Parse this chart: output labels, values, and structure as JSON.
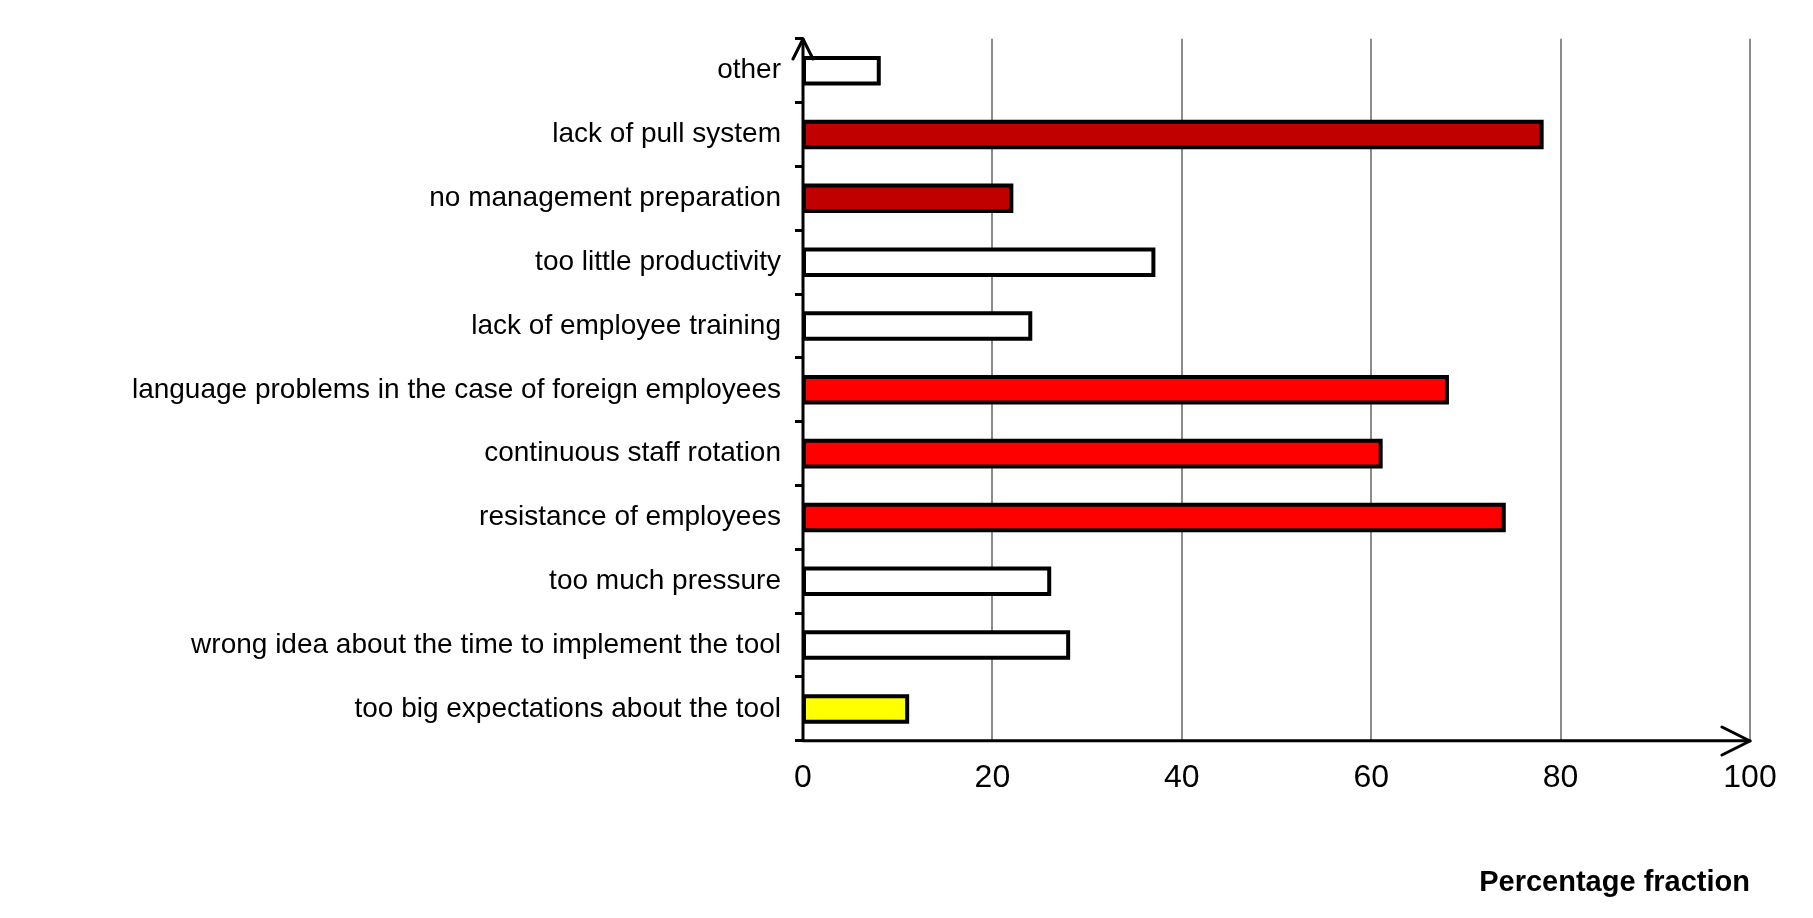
{
  "chart_data": {
    "type": "bar",
    "orientation": "horizontal",
    "xlabel": "Percentage fraction",
    "categories": [
      "other",
      "lack of pull system",
      "no management preparation",
      "too little productivity",
      "lack of employee training",
      "language problems in the case of foreign employees",
      "continuous staff rotation",
      "resistance of employees",
      "too much pressure",
      "wrong idea about the time to implement the tool",
      "too big expectations about the tool"
    ],
    "values": [
      8,
      78,
      22,
      37,
      24,
      68,
      61,
      74,
      26,
      28,
      11
    ],
    "colors": [
      "#ffffff",
      "#c00000",
      "#c00000",
      "#ffffff",
      "#ffffff",
      "#ff0000",
      "#ff0000",
      "#ff0000",
      "#ffffff",
      "#ffffff",
      "#ffff00"
    ],
    "xlim": [
      0,
      100
    ],
    "xticks": [
      0,
      20,
      40,
      60,
      80,
      100
    ],
    "grid": "x",
    "legend": false
  }
}
